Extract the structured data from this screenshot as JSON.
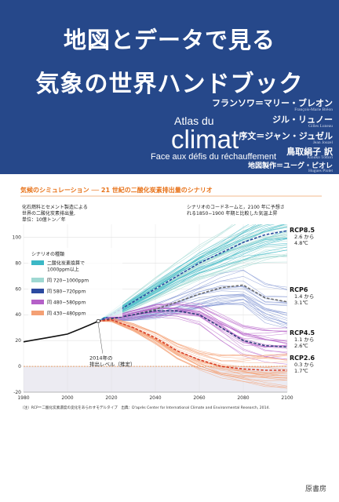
{
  "cover": {
    "title_line1": "地図とデータで見る",
    "title_line2": "気象の世界ハンドブック",
    "fr_atlas": "Atlas du",
    "fr_climat": "climat",
    "fr_subtitle": "Face aux défis du réchauffement",
    "credits": [
      {
        "ja": "フランソワ＝マリー・ブレオン",
        "latin": "François-Marie Bréon"
      },
      {
        "ja": "ジル・リュノー",
        "latin": "Gilles Luneau"
      },
      {
        "ja": "序文＝ジャン・ジュゼル",
        "latin": "Jean Jouzel"
      },
      {
        "ja": "鳥取絹子 訳",
        "latin": "Kinuko Tottori"
      },
      {
        "ja": "地図製作＝ユーグ・ピオレ",
        "latin": "Hugues Piolet"
      }
    ],
    "publisher": "原書房",
    "colors": {
      "band": "#26488a",
      "accent": "#e8731a"
    }
  },
  "chart_data": {
    "type": "line",
    "title": "気候のシミュレーション ── 21 世紀の二酸化炭素排出量のシナリオ",
    "ylabel_lines": [
      "化石燃料とセメント製造による",
      "世界の二酸化炭素排出量,",
      "単位：10億トン／年"
    ],
    "right_note_lines": [
      "シナリオのコードネームと，2100 年に予想さ",
      "れる1850−1900 年期と比較した気温上昇"
    ],
    "xlim": [
      1980,
      2100
    ],
    "ylim": [
      -20,
      110
    ],
    "x_ticks": [
      1980,
      2000,
      2020,
      2040,
      2060,
      2080,
      2100
    ],
    "y_ticks": [
      -20,
      0,
      20,
      40,
      60,
      80,
      100
    ],
    "legend_title": "シナリオの種類",
    "legend": [
      {
        "label_lines": [
          "二酸化炭素換算で",
          "1000ppm以上"
        ],
        "color": "#3cb8c6"
      },
      {
        "label_lines": [
          "同 720−1000ppm"
        ],
        "color": "#9fd8d2"
      },
      {
        "label_lines": [
          "同 580−720ppm"
        ],
        "color": "#2c4aa0"
      },
      {
        "label_lines": [
          "同 480−580ppm"
        ],
        "color": "#b560c8"
      },
      {
        "label_lines": [
          "同 430−480ppm"
        ],
        "color": "#f4a074"
      }
    ],
    "historical": {
      "x": [
        1980,
        1985,
        1990,
        1995,
        2000,
        2005,
        2010,
        2014
      ],
      "y": [
        19,
        20.5,
        22,
        23.5,
        25,
        28.5,
        32,
        35
      ]
    },
    "series": [
      {
        "name": "RCP8.5",
        "range": "2.6 から",
        "value": "4.8℃",
        "x": [
          2014,
          2020,
          2030,
          2040,
          2050,
          2060,
          2070,
          2080,
          2090,
          2100
        ],
        "y": [
          35,
          40,
          50,
          60,
          70,
          80,
          88,
          96,
          102,
          105
        ],
        "color": "#2c4aa0"
      },
      {
        "name": "RCP6",
        "range": "1.4 から",
        "value": "3.1℃",
        "x": [
          2014,
          2020,
          2030,
          2040,
          2050,
          2060,
          2070,
          2080,
          2090,
          2100
        ],
        "y": [
          35,
          37,
          40,
          44,
          50,
          56,
          61,
          63,
          53,
          50
        ],
        "color": "#6d6d6d"
      },
      {
        "name": "RCP4.5",
        "range": "1.1 から",
        "value": "2.6℃",
        "x": [
          2014,
          2020,
          2030,
          2040,
          2050,
          2060,
          2070,
          2080,
          2090,
          2100
        ],
        "y": [
          35,
          37,
          40,
          43,
          43,
          40,
          30,
          20,
          16,
          15
        ],
        "color": "#2e3f7a"
      },
      {
        "name": "RCP2.6",
        "range": "0.3 から",
        "value": "1.7℃",
        "x": [
          2014,
          2020,
          2030,
          2040,
          2050,
          2060,
          2070,
          2080,
          2090,
          2100
        ],
        "y": [
          35,
          36,
          30,
          22,
          12,
          5,
          0,
          -2,
          -3,
          -3
        ],
        "color": "#d8402a"
      }
    ],
    "annotation_lines": [
      "2014年の",
      "排出レベル（推定）"
    ],
    "footnote": "（注）RCP＝二酸化炭素濃度の変化をあらわすモデルタイプ　出典：D'après Center for International Climate and Environmental Research, 2014."
  }
}
